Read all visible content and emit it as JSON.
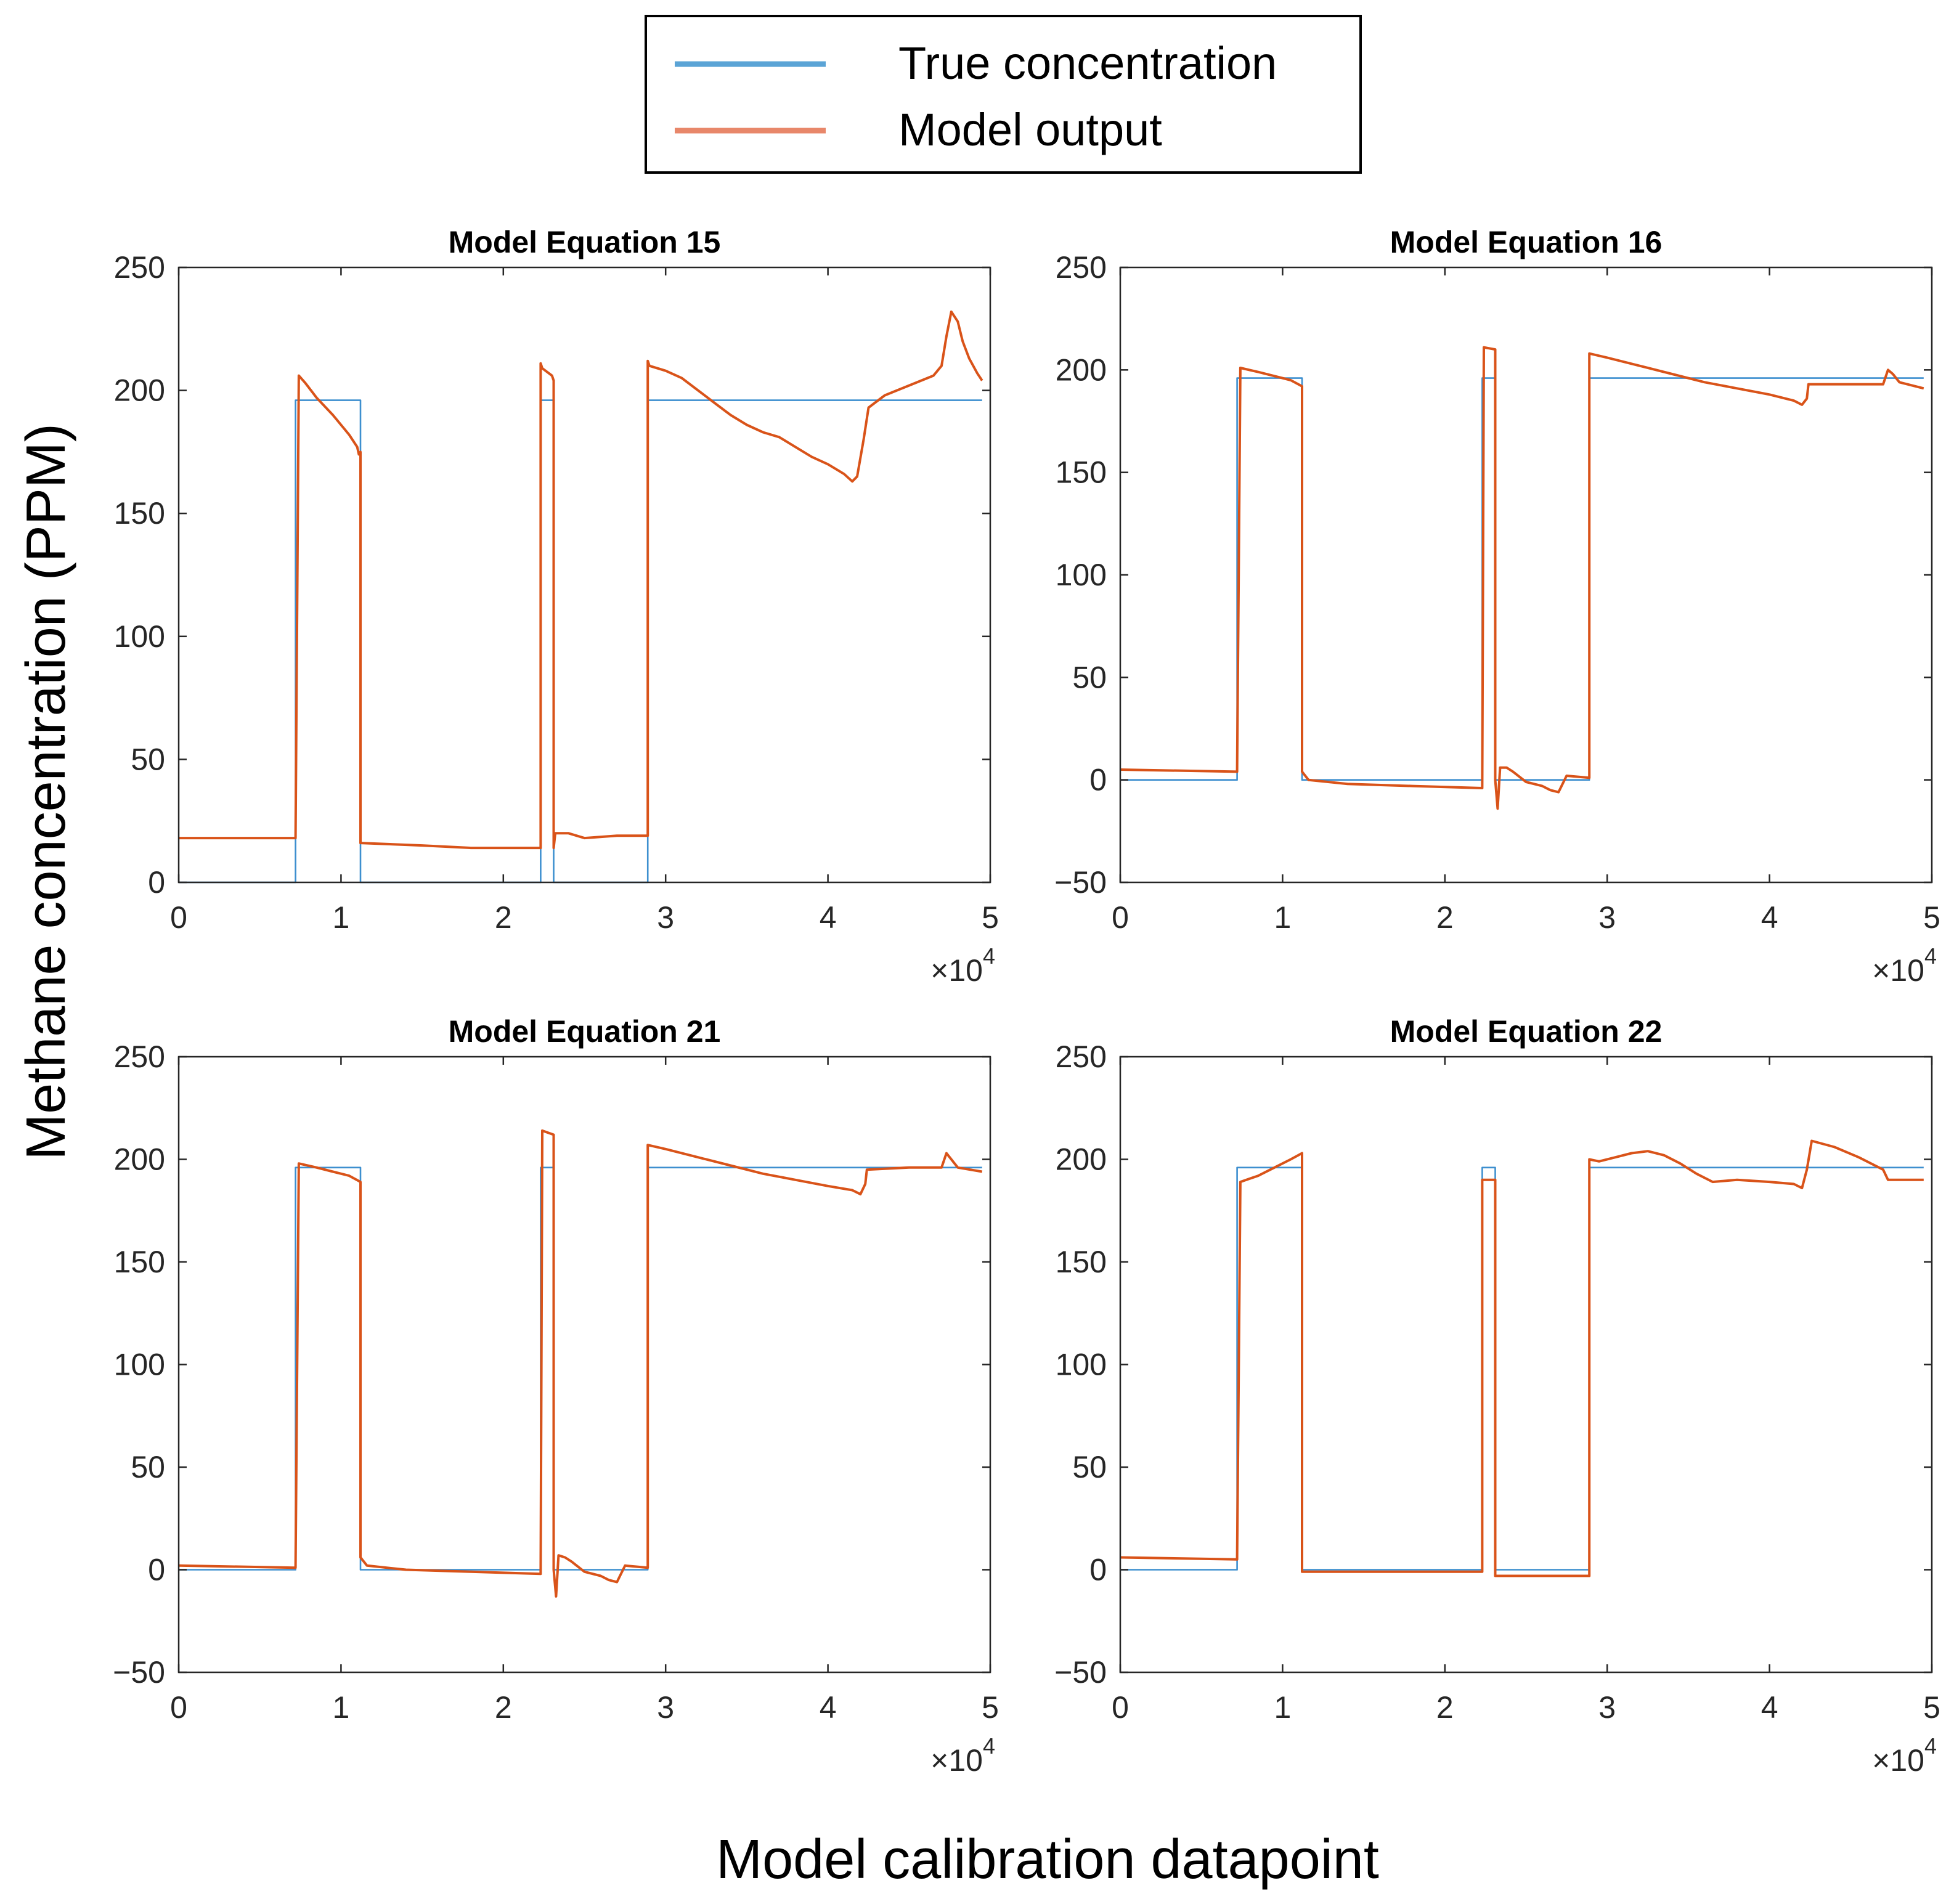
{
  "figure": {
    "ylabel": "Methane concentration (PPM)",
    "xlabel": "Model calibration datapoint"
  },
  "legend": {
    "placement": "top-center",
    "entries": [
      {
        "label": "True concentration",
        "color": "#5ba4d6"
      },
      {
        "label": "Model output",
        "color": "#e8876a"
      }
    ]
  },
  "colors": {
    "true": "#3d8fcf",
    "model": "#d95319",
    "axis": "#262626",
    "tick_text": "#262626"
  },
  "chart_data": [
    {
      "type": "line",
      "title": "Model Equation 15",
      "xlim": [
        0,
        50000
      ],
      "ylim": [
        0,
        250
      ],
      "xticks": [
        0,
        10000,
        20000,
        30000,
        40000,
        50000
      ],
      "xtick_labels": [
        "0",
        "1",
        "2",
        "3",
        "4",
        "5"
      ],
      "yticks": [
        0,
        50,
        100,
        150,
        200,
        250
      ],
      "ytick_labels": [
        "0",
        "50",
        "100",
        "150",
        "200",
        "250"
      ],
      "x_exponent_label": "×10",
      "x_exponent_power": "4",
      "series": [
        {
          "name": "True concentration",
          "role": "true",
          "x": [
            0,
            7200,
            7200,
            11200,
            11200,
            22300,
            22300,
            23100,
            23100,
            28900,
            28900,
            49500
          ],
          "y": [
            0,
            0,
            196,
            196,
            0,
            0,
            196,
            196,
            0,
            0,
            196,
            196
          ]
        },
        {
          "name": "Model output",
          "role": "model",
          "x": [
            0,
            7200,
            7200,
            7400,
            7800,
            8500,
            9500,
            10500,
            11000,
            11100,
            11200,
            11200,
            15000,
            18000,
            22300,
            22300,
            22400,
            23000,
            23100,
            23100,
            23200,
            24000,
            25000,
            27000,
            28900,
            28900,
            29000,
            30000,
            31000,
            32000,
            33000,
            34000,
            35000,
            36000,
            37000,
            38000,
            39000,
            40000,
            41000,
            41500,
            41800,
            42200,
            42500,
            43500,
            45000,
            46500,
            47000,
            47300,
            47600,
            48000,
            48300,
            48700,
            49200,
            49500
          ],
          "y": [
            18,
            18,
            18,
            206,
            203,
            197,
            190,
            182,
            177,
            174,
            175,
            16,
            15,
            14,
            14,
            211,
            209,
            206,
            204,
            14,
            20,
            20,
            18,
            19,
            19,
            212,
            210,
            208,
            205,
            200,
            195,
            190,
            186,
            183,
            181,
            177,
            173,
            170,
            166,
            163,
            165,
            180,
            193,
            198,
            202,
            206,
            210,
            222,
            232,
            228,
            220,
            213,
            207,
            204
          ]
        }
      ]
    },
    {
      "type": "line",
      "title": "Model Equation 16",
      "xlim": [
        0,
        50000
      ],
      "ylim": [
        -50,
        250
      ],
      "xticks": [
        0,
        10000,
        20000,
        30000,
        40000,
        50000
      ],
      "xtick_labels": [
        "0",
        "1",
        "2",
        "3",
        "4",
        "5"
      ],
      "yticks": [
        -50,
        0,
        50,
        100,
        150,
        200,
        250
      ],
      "ytick_labels": [
        "−50",
        "0",
        "50",
        "100",
        "150",
        "200",
        "250"
      ],
      "x_exponent_label": "×10",
      "x_exponent_power": "4",
      "series": [
        {
          "name": "True concentration",
          "role": "true",
          "x": [
            0,
            7200,
            7200,
            11200,
            11200,
            22300,
            22300,
            23100,
            23100,
            28900,
            28900,
            49500
          ],
          "y": [
            0,
            0,
            196,
            196,
            0,
            0,
            196,
            196,
            0,
            0,
            196,
            196
          ]
        },
        {
          "name": "Model output",
          "role": "model",
          "x": [
            0,
            7200,
            7200,
            7400,
            8500,
            9500,
            10500,
            11200,
            11200,
            11600,
            14000,
            18000,
            22300,
            22300,
            22400,
            23100,
            23100,
            23250,
            23400,
            23800,
            24200,
            25000,
            26000,
            26500,
            27000,
            27500,
            28900,
            28900,
            30000,
            32000,
            34000,
            36000,
            38000,
            40000,
            41500,
            42000,
            42300,
            42400,
            45000,
            47000,
            47300,
            47600,
            48000,
            49500
          ],
          "y": [
            5,
            4,
            4,
            201,
            199,
            197,
            195,
            192,
            4,
            0,
            -2,
            -3,
            -4,
            -4,
            211,
            210,
            0,
            -14,
            6,
            6,
            4,
            -1,
            -3,
            -5,
            -6,
            2,
            1,
            208,
            206,
            202,
            198,
            194,
            191,
            188,
            185,
            183,
            186,
            193,
            193,
            193,
            200,
            198,
            194,
            191
          ]
        }
      ]
    },
    {
      "type": "line",
      "title": "Model Equation 21",
      "xlim": [
        0,
        50000
      ],
      "ylim": [
        -50,
        250
      ],
      "xticks": [
        0,
        10000,
        20000,
        30000,
        40000,
        50000
      ],
      "xtick_labels": [
        "0",
        "1",
        "2",
        "3",
        "4",
        "5"
      ],
      "yticks": [
        -50,
        0,
        50,
        100,
        150,
        200,
        250
      ],
      "ytick_labels": [
        "−50",
        "0",
        "50",
        "100",
        "150",
        "200",
        "250"
      ],
      "x_exponent_label": "×10",
      "x_exponent_power": "4",
      "series": [
        {
          "name": "True concentration",
          "role": "true",
          "x": [
            0,
            7200,
            7200,
            11200,
            11200,
            22300,
            22300,
            23100,
            23100,
            28900,
            28900,
            49500
          ],
          "y": [
            0,
            0,
            196,
            196,
            0,
            0,
            196,
            196,
            0,
            0,
            196,
            196
          ]
        },
        {
          "name": "Model output",
          "role": "model",
          "x": [
            0,
            7200,
            7200,
            7400,
            8500,
            9500,
            10500,
            11200,
            11200,
            11600,
            14000,
            18000,
            22300,
            22300,
            22400,
            23100,
            23100,
            23250,
            23400,
            23800,
            24200,
            25000,
            26000,
            26500,
            27000,
            27500,
            28900,
            28900,
            30000,
            32000,
            34000,
            36000,
            38000,
            40000,
            41500,
            42000,
            42300,
            42400,
            45000,
            47000,
            47300,
            47600,
            48000,
            49500
          ],
          "y": [
            2,
            1,
            1,
            198,
            196,
            194,
            192,
            189,
            6,
            2,
            0,
            -1,
            -2,
            -2,
            214,
            212,
            0,
            -13,
            7,
            6,
            4,
            -1,
            -3,
            -5,
            -6,
            2,
            1,
            207,
            205,
            201,
            197,
            193,
            190,
            187,
            185,
            183,
            188,
            195,
            196,
            196,
            203,
            200,
            196,
            194
          ]
        }
      ]
    },
    {
      "type": "line",
      "title": "Model Equation 22",
      "xlim": [
        0,
        50000
      ],
      "ylim": [
        -50,
        250
      ],
      "xticks": [
        0,
        10000,
        20000,
        30000,
        40000,
        50000
      ],
      "xtick_labels": [
        "0",
        "1",
        "2",
        "3",
        "4",
        "5"
      ],
      "yticks": [
        -50,
        0,
        50,
        100,
        150,
        200,
        250
      ],
      "ytick_labels": [
        "−50",
        "0",
        "50",
        "100",
        "150",
        "200",
        "250"
      ],
      "x_exponent_label": "×10",
      "x_exponent_power": "4",
      "series": [
        {
          "name": "True concentration",
          "role": "true",
          "x": [
            0,
            7200,
            7200,
            11200,
            11200,
            22300,
            22300,
            23100,
            23100,
            28900,
            28900,
            49500
          ],
          "y": [
            0,
            0,
            196,
            196,
            0,
            0,
            196,
            196,
            0,
            0,
            196,
            196
          ]
        },
        {
          "name": "Model output",
          "role": "model",
          "x": [
            0,
            7200,
            7200,
            7400,
            8500,
            9500,
            10500,
            11200,
            11200,
            14000,
            18000,
            22300,
            22300,
            23100,
            23100,
            24000,
            26000,
            28900,
            28900,
            29500,
            30500,
            31500,
            32500,
            33500,
            34500,
            35500,
            36500,
            38000,
            40000,
            41500,
            42000,
            42300,
            42600,
            44000,
            45500,
            46500,
            47000,
            47300,
            49500
          ],
          "y": [
            6,
            5,
            5,
            189,
            192,
            196,
            200,
            203,
            -1,
            -1,
            -1,
            -1,
            190,
            190,
            -3,
            -3,
            -3,
            -3,
            200,
            199,
            201,
            203,
            204,
            202,
            198,
            193,
            189,
            190,
            189,
            188,
            186,
            195,
            209,
            206,
            201,
            197,
            195,
            190,
            190
          ]
        }
      ]
    }
  ]
}
